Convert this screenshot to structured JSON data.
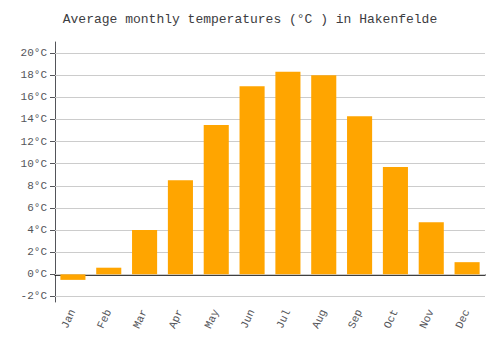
{
  "chart_data": {
    "type": "bar",
    "title": "Average monthly temperatures (°C ) in Hakenfelde",
    "categories": [
      "Jan",
      "Feb",
      "Mar",
      "Apr",
      "May",
      "Jun",
      "Jul",
      "Aug",
      "Sep",
      "Oct",
      "Nov",
      "Dec"
    ],
    "values": [
      -0.5,
      0.6,
      4.0,
      8.5,
      13.5,
      17.0,
      18.3,
      18.0,
      14.3,
      9.7,
      4.7,
      1.1
    ],
    "color": "#FFA500",
    "ylim": [
      -2.5,
      21
    ],
    "yticks": [
      {
        "value": -2,
        "label": "-2°C"
      },
      {
        "value": 0,
        "label": "0°C"
      },
      {
        "value": 2,
        "label": "2°C"
      },
      {
        "value": 4,
        "label": "4°C"
      },
      {
        "value": 6,
        "label": "6°C"
      },
      {
        "value": 8,
        "label": "8°C"
      },
      {
        "value": 10,
        "label": "10°C"
      },
      {
        "value": 12,
        "label": "12°C"
      },
      {
        "value": 14,
        "label": "14°C"
      },
      {
        "value": 16,
        "label": "16°C"
      },
      {
        "value": 18,
        "label": "18°C"
      },
      {
        "value": 20,
        "label": "20°C"
      }
    ],
    "grid": true
  }
}
